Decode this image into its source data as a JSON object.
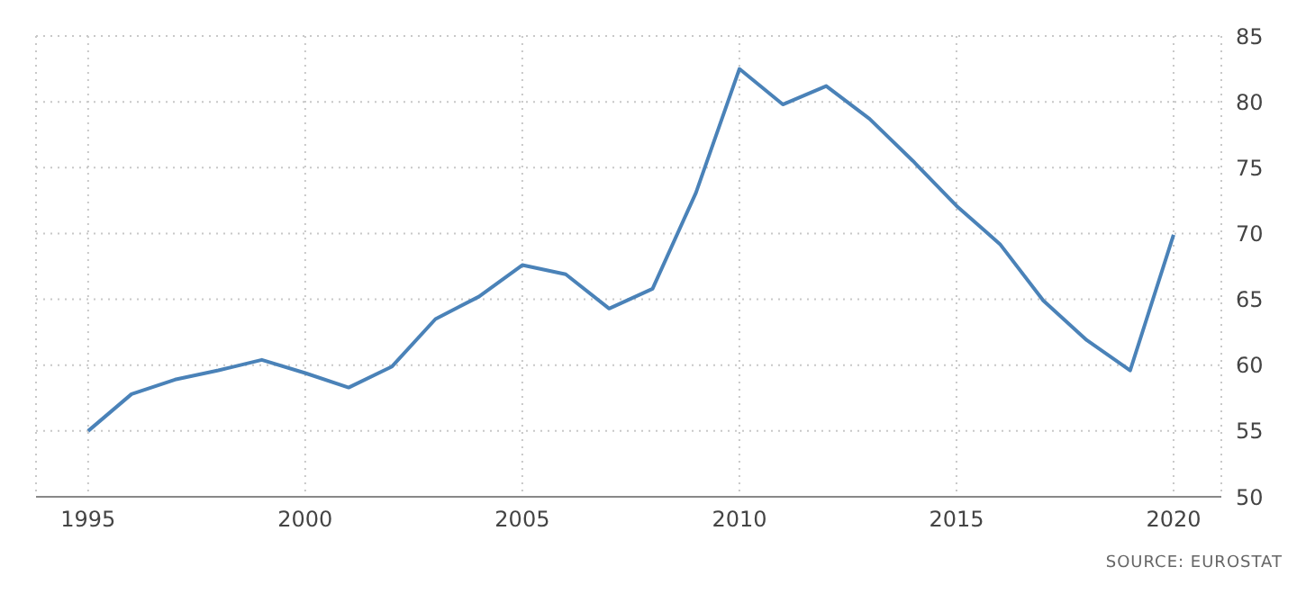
{
  "chart_data": {
    "type": "line",
    "x": [
      1995,
      1996,
      1997,
      1998,
      1999,
      2000,
      2001,
      2002,
      2003,
      2004,
      2005,
      2006,
      2007,
      2008,
      2009,
      2010,
      2011,
      2012,
      2013,
      2014,
      2015,
      2016,
      2017,
      2018,
      2019,
      2020
    ],
    "series": [
      {
        "color": "#4a82b8",
        "values": [
          55.0,
          57.8,
          58.9,
          59.6,
          60.4,
          59.4,
          58.3,
          59.9,
          63.5,
          65.2,
          67.6,
          66.9,
          64.3,
          65.8,
          73.1,
          82.5,
          79.8,
          81.2,
          78.7,
          75.5,
          72.1,
          69.2,
          64.9,
          61.9,
          59.6,
          69.9
        ]
      }
    ],
    "xlim": [
      1993.8,
      2021.1
    ],
    "xticks": [
      1995,
      2000,
      2005,
      2010,
      2015,
      2020
    ],
    "ylim": [
      50,
      85
    ],
    "yticks": [
      50,
      55,
      60,
      65,
      70,
      75,
      80,
      85
    ],
    "grid": true,
    "marker": "none",
    "line_style": "solid",
    "annotations": [
      "SOURCE: EUROSTAT"
    ]
  }
}
